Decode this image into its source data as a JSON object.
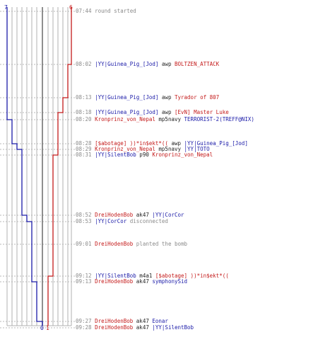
{
  "team_counts": {
    "blue_start": "7",
    "red_start": "6",
    "blue_end": "0",
    "red_end": "1"
  },
  "colors": {
    "blue": "#1a1aa8",
    "red": "#c41a1a",
    "grid": "#b0b0b0",
    "timestamp": "#8a8a8a"
  },
  "events": [
    {
      "time": "07:44",
      "parts": [
        {
          "t": "round started",
          "c": "sys"
        }
      ]
    },
    {
      "time": "08:02",
      "parts": [
        {
          "t": "|YY|Guinea_Pig_[Jod]",
          "c": "blue"
        },
        {
          "t": " awp ",
          "c": "wp"
        },
        {
          "t": "BOLTZEN_ATTACK",
          "c": "red"
        }
      ]
    },
    {
      "time": "08:13",
      "parts": [
        {
          "t": "|YY|Guinea_Pig_[Jod]",
          "c": "blue"
        },
        {
          "t": " awp ",
          "c": "wp"
        },
        {
          "t": "Tyrador of 807",
          "c": "red"
        }
      ]
    },
    {
      "time": "08:18",
      "parts": [
        {
          "t": "|YY|Guinea_Pig_[Jod]",
          "c": "blue"
        },
        {
          "t": " awp ",
          "c": "wp"
        },
        {
          "t": "[EvN] Master Luke",
          "c": "red"
        }
      ]
    },
    {
      "time": "08:20",
      "parts": [
        {
          "t": "Kronprinz_von_Nepal",
          "c": "red"
        },
        {
          "t": " mp5navy ",
          "c": "wp"
        },
        {
          "t": "TERRORIST-2(TREFF@NIX)",
          "c": "blue"
        }
      ]
    },
    {
      "time": "08:28",
      "parts": [
        {
          "t": "[$abotage] ))*in$ekt*((",
          "c": "red"
        },
        {
          "t": " awp ",
          "c": "wp"
        },
        {
          "t": "|YY|Guinea_Pig_[Jod]",
          "c": "blue"
        }
      ]
    },
    {
      "time": "08:29",
      "parts": [
        {
          "t": "Kronprinz_von_Nepal",
          "c": "red"
        },
        {
          "t": " mp5navy ",
          "c": "wp"
        },
        {
          "t": "|YY|TOTO",
          "c": "blue"
        }
      ]
    },
    {
      "time": "08:31",
      "parts": [
        {
          "t": "|YY|SilentBob",
          "c": "blue"
        },
        {
          "t": " p90 ",
          "c": "wp"
        },
        {
          "t": "Kronprinz_von_Nepal",
          "c": "red"
        }
      ]
    },
    {
      "time": "08:52",
      "parts": [
        {
          "t": "DreiHodenBob",
          "c": "red"
        },
        {
          "t": " ak47 ",
          "c": "wp"
        },
        {
          "t": "|YY|CorCor",
          "c": "blue"
        }
      ]
    },
    {
      "time": "08:53",
      "parts": [
        {
          "t": "|YY|CorCor",
          "c": "blue"
        },
        {
          "t": " disconnected",
          "c": "sys"
        }
      ]
    },
    {
      "time": "09:01",
      "parts": [
        {
          "t": "DreiHodenBob",
          "c": "red"
        },
        {
          "t": " planted the bomb",
          "c": "sys"
        }
      ]
    },
    {
      "time": "09:12",
      "parts": [
        {
          "t": "|YY|SilentBob",
          "c": "blue"
        },
        {
          "t": " m4a1 ",
          "c": "wp"
        },
        {
          "t": "[$abotage] ))*in$ekt*((",
          "c": "red"
        }
      ]
    },
    {
      "time": "09:13",
      "parts": [
        {
          "t": "DreiHodenBob",
          "c": "red"
        },
        {
          "t": " ak47 ",
          "c": "wp"
        },
        {
          "t": "symphonySid",
          "c": "blue"
        }
      ]
    },
    {
      "time": "09:27",
      "parts": [
        {
          "t": "DreiHodenBob",
          "c": "red"
        },
        {
          "t": " ak47 ",
          "c": "wp"
        },
        {
          "t": "Eonar",
          "c": "blue"
        }
      ]
    },
    {
      "time": "09:28",
      "parts": [
        {
          "t": "DreiHodenBob",
          "c": "red"
        },
        {
          "t": " ak47 ",
          "c": "wp"
        },
        {
          "t": "|YY|SilentBob",
          "c": "blue"
        }
      ]
    }
  ],
  "chart_data": {
    "type": "line",
    "x": [
      "07:44",
      "08:02",
      "08:13",
      "08:18",
      "08:20",
      "08:28",
      "08:29",
      "08:31",
      "08:52",
      "08:53",
      "09:01",
      "09:12",
      "09:13",
      "09:27",
      "09:28"
    ],
    "ylim": [
      0,
      7
    ],
    "series": [
      {
        "values": [
          7,
          7,
          7,
          7,
          6,
          5,
          4,
          4,
          3,
          2,
          2,
          2,
          1,
          0,
          0
        ]
      },
      {
        "values": [
          6,
          5,
          4,
          3,
          3,
          3,
          3,
          2,
          2,
          2,
          2,
          1,
          1,
          1,
          1
        ]
      }
    ]
  }
}
